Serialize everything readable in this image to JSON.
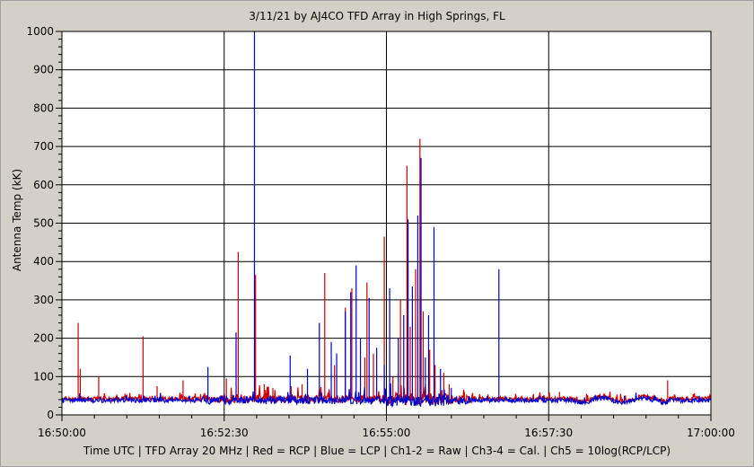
{
  "chart_data": {
    "type": "line",
    "title": "3/11/21  by  AJ4CO TFD Array  in  High Springs, FL",
    "ylabel": "Antenna Temp  (kK)",
    "xlabel": "Time UTC | TFD Array 20 MHz | Red = RCP | Blue = LCP | Ch1-2 = Raw | Ch3-4 = Cal. | Ch5 = 10log(RCP/LCP)",
    "ylim": [
      0,
      1000
    ],
    "yticks": [
      "0",
      "100",
      "200",
      "300",
      "400",
      "500",
      "600",
      "700",
      "800",
      "900",
      "1000"
    ],
    "xticks": [
      "16:50:00",
      "16:52:30",
      "16:55:00",
      "16:57:30",
      "17:00:00"
    ],
    "xlim_seconds": [
      0,
      600
    ],
    "grid": true,
    "series": [
      {
        "name": "RCP",
        "color": "#cc0000",
        "baseline": 42,
        "spikes": [
          [
            15,
            240
          ],
          [
            17,
            120
          ],
          [
            34,
            100
          ],
          [
            75,
            205
          ],
          [
            88,
            75
          ],
          [
            112,
            90
          ],
          [
            152,
            95
          ],
          [
            163,
            425
          ],
          [
            179,
            365
          ],
          [
            187,
            80
          ],
          [
            195,
            70
          ],
          [
            212,
            75
          ],
          [
            222,
            80
          ],
          [
            243,
            370
          ],
          [
            252,
            130
          ],
          [
            262,
            280
          ],
          [
            268,
            330
          ],
          [
            280,
            150
          ],
          [
            282,
            345
          ],
          [
            288,
            160
          ],
          [
            298,
            465
          ],
          [
            306,
            100
          ],
          [
            313,
            300
          ],
          [
            319,
            650
          ],
          [
            322,
            230
          ],
          [
            327,
            380
          ],
          [
            331,
            720
          ],
          [
            334,
            270
          ],
          [
            340,
            170
          ],
          [
            345,
            130
          ],
          [
            353,
            110
          ],
          [
            358,
            80
          ],
          [
            372,
            60
          ],
          [
            420,
            50
          ],
          [
            460,
            60
          ],
          [
            485,
            55
          ],
          [
            560,
            90
          ]
        ]
      },
      {
        "name": "LCP",
        "color": "#0000cc",
        "baseline": 38,
        "spikes": [
          [
            178,
            1000
          ],
          [
            135,
            125
          ],
          [
            161,
            215
          ],
          [
            211,
            155
          ],
          [
            227,
            120
          ],
          [
            238,
            240
          ],
          [
            249,
            190
          ],
          [
            254,
            160
          ],
          [
            262,
            270
          ],
          [
            267,
            320
          ],
          [
            272,
            390
          ],
          [
            276,
            200
          ],
          [
            284,
            305
          ],
          [
            291,
            175
          ],
          [
            298,
            130
          ],
          [
            303,
            330
          ],
          [
            311,
            200
          ],
          [
            316,
            260
          ],
          [
            320,
            510
          ],
          [
            324,
            335
          ],
          [
            329,
            520
          ],
          [
            332,
            670
          ],
          [
            336,
            150
          ],
          [
            339,
            260
          ],
          [
            344,
            490
          ],
          [
            350,
            120
          ],
          [
            404,
            380
          ],
          [
            360,
            70
          ],
          [
            150,
            55
          ],
          [
            520,
            50
          ],
          [
            600,
            40
          ]
        ]
      }
    ]
  }
}
